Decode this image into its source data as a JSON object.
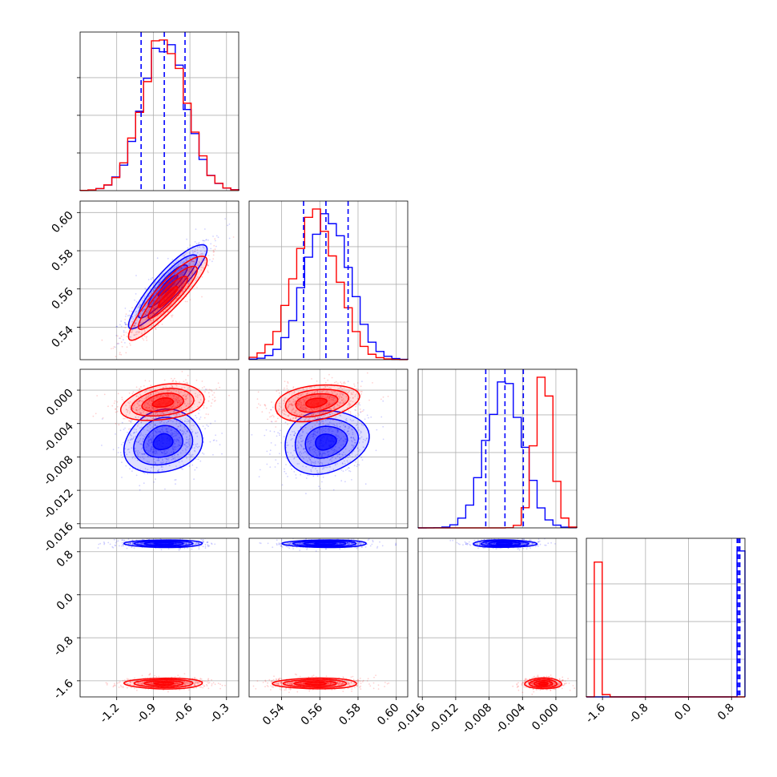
{
  "chart_data": {
    "type": "corner",
    "colors": {
      "series_a": "#0000ff",
      "series_b": "#ff0000"
    },
    "grid": true,
    "parameters": [
      {
        "range": [
          -1.5,
          -0.2
        ],
        "ticks": [
          "-1.2",
          "-0.9",
          "-0.6",
          "-0.3"
        ],
        "tick_values": [
          -1.2,
          -0.9,
          -0.6,
          -0.3
        ]
      },
      {
        "range": [
          0.523,
          0.606
        ],
        "ticks": [
          "0.54",
          "0.56",
          "0.58",
          "0.60"
        ],
        "tick_values": [
          0.54,
          0.56,
          0.58,
          0.6
        ]
      },
      {
        "range": [
          -0.0165,
          0.0025
        ],
        "ticks": [
          "-0.016",
          "-0.012",
          "-0.008",
          "-0.004",
          "0.000"
        ],
        "tick_values": [
          -0.016,
          -0.012,
          -0.008,
          -0.004,
          0.0
        ]
      },
      {
        "range": [
          -1.9,
          1.05
        ],
        "ticks": [
          "-1.6",
          "-0.8",
          "0.0",
          "0.8"
        ],
        "tick_values": [
          -1.6,
          -0.8,
          0.0,
          0.8
        ]
      }
    ],
    "diagonal": [
      {
        "series_a": {
          "mean": -0.81,
          "sd": 0.18
        },
        "series_b": {
          "mean": -0.81,
          "sd": 0.18
        },
        "quantile_lines": [
          -1.0,
          -0.81,
          -0.64
        ]
      },
      {
        "series_a": {
          "mean": 0.564,
          "sd": 0.0115
        },
        "series_b": {
          "mean": 0.558,
          "sd": 0.0115
        },
        "quantile_lines": [
          0.5515,
          0.5632,
          0.5748
        ]
      },
      {
        "series_a": {
          "mean": -0.0061,
          "sd": 0.0022
        },
        "series_b": {
          "mean": -0.0015,
          "sd": 0.0011
        },
        "quantile_lines": [
          -0.0084,
          -0.0061,
          -0.0039
        ]
      },
      {
        "series_a": {
          "mean": 0.95,
          "sd": 0.03
        },
        "series_b": {
          "mean": -1.65,
          "sd": 0.04
        },
        "quantile_lines": [
          0.905,
          0.93,
          0.955
        ]
      }
    ],
    "joint": [
      {
        "row": 1,
        "col": 0,
        "series_a": {
          "mean": [
            -0.78,
            0.562
          ],
          "sd": [
            0.16,
            0.011
          ],
          "rho": 0.9
        },
        "series_b": {
          "mean": [
            -0.78,
            0.556
          ],
          "sd": [
            0.16,
            0.011
          ],
          "rho": 0.9
        }
      },
      {
        "row": 2,
        "col": 0,
        "series_a": {
          "mean": [
            -0.82,
            -0.0062
          ],
          "sd": [
            0.16,
            0.0019
          ],
          "rho": 0.15
        },
        "series_b": {
          "mean": [
            -0.82,
            -0.0015
          ],
          "sd": [
            0.17,
            0.0011
          ],
          "rho": 0.3
        }
      },
      {
        "row": 2,
        "col": 1,
        "series_a": {
          "mean": [
            0.563,
            -0.0062
          ],
          "sd": [
            0.011,
            0.0019
          ],
          "rho": 0.15
        },
        "series_b": {
          "mean": [
            0.558,
            -0.0015
          ],
          "sd": [
            0.011,
            0.0011
          ],
          "rho": 0.3
        }
      },
      {
        "row": 3,
        "col": 0,
        "series_a": {
          "mean": [
            -0.81,
            0.95
          ],
          "sd": [
            0.16,
            0.035
          ],
          "rho": 0.0
        },
        "series_b": {
          "mean": [
            -0.81,
            -1.65
          ],
          "sd": [
            0.16,
            0.05
          ],
          "rho": 0.0
        }
      },
      {
        "row": 3,
        "col": 1,
        "series_a": {
          "mean": [
            0.563,
            0.95
          ],
          "sd": [
            0.011,
            0.035
          ],
          "rho": 0.0
        },
        "series_b": {
          "mean": [
            0.558,
            -1.65
          ],
          "sd": [
            0.011,
            0.05
          ],
          "rho": 0.0
        }
      },
      {
        "row": 3,
        "col": 2,
        "series_a": {
          "mean": [
            -0.0062,
            0.95
          ],
          "sd": [
            0.0019,
            0.035
          ],
          "rho": 0.0
        },
        "series_b": {
          "mean": [
            -0.0015,
            -1.65
          ],
          "sd": [
            0.0011,
            0.05
          ],
          "rho": 0.0
        }
      }
    ]
  }
}
